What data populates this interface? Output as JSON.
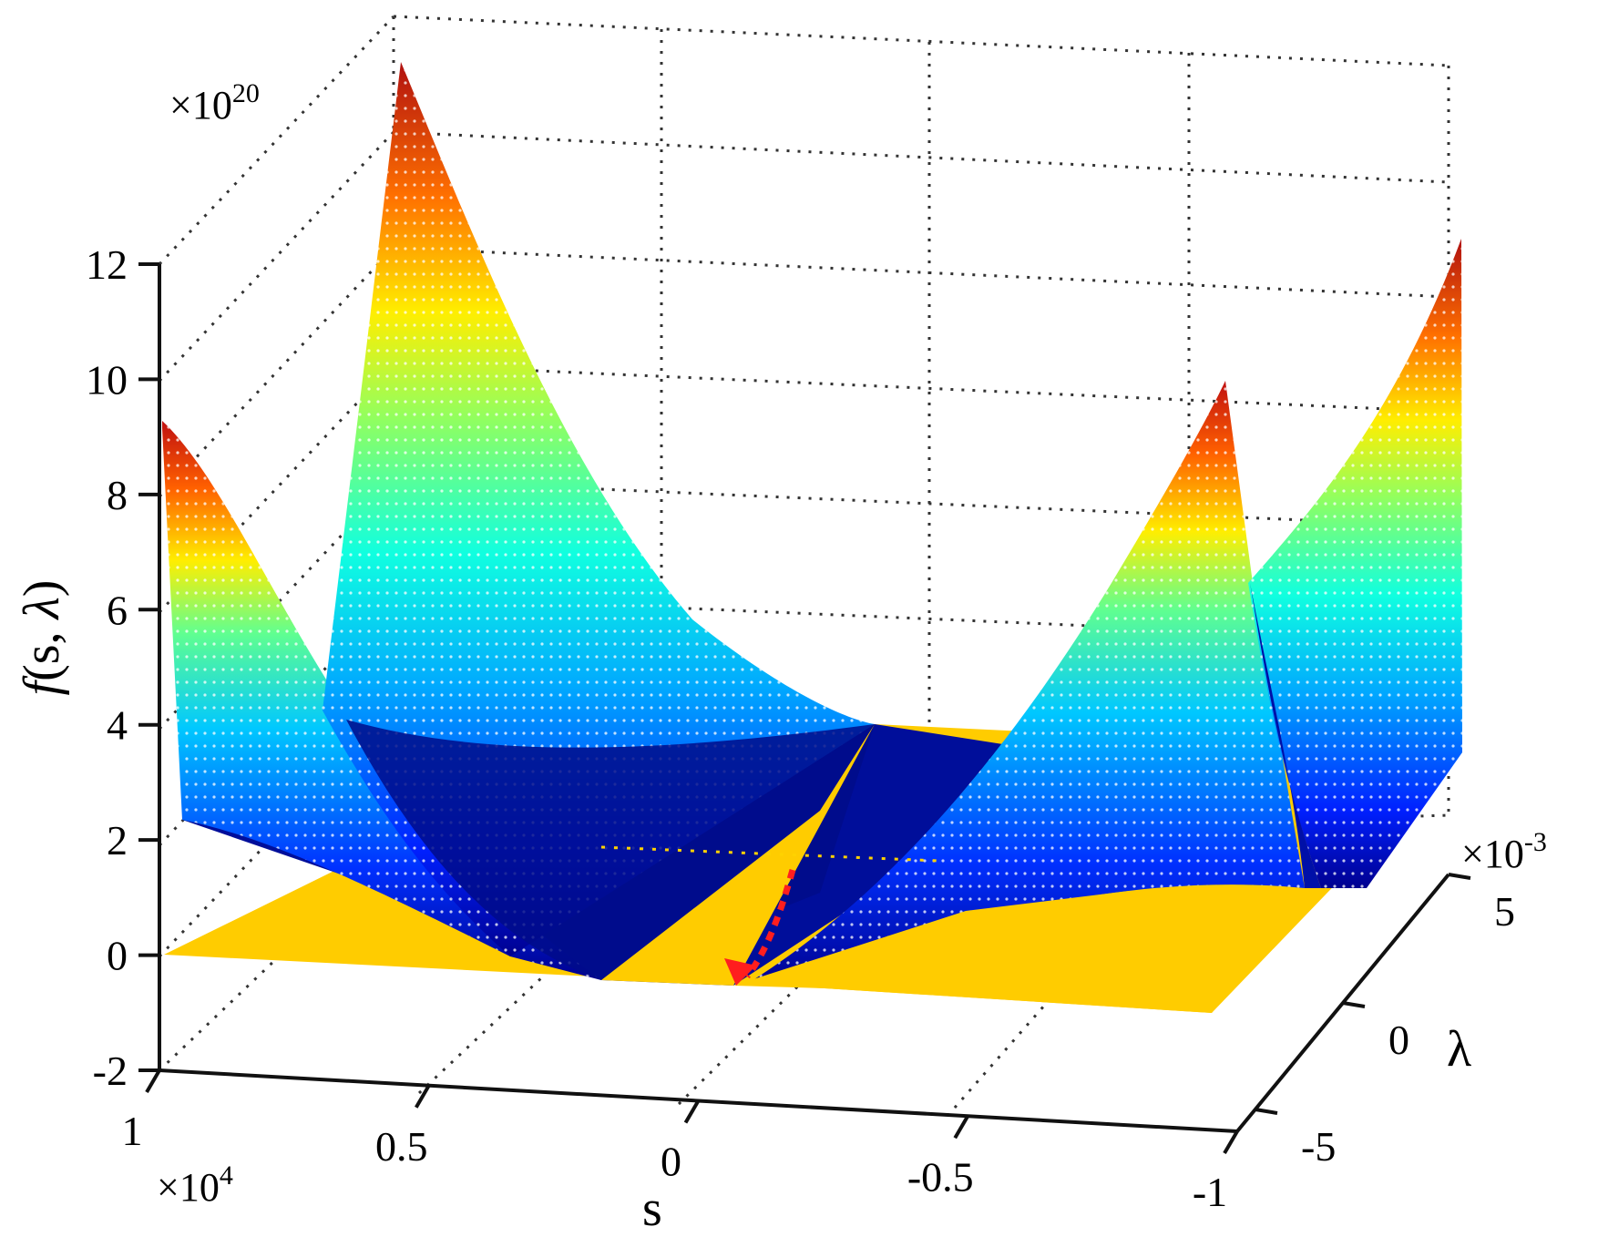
{
  "chart_data": {
    "type": "surface3d",
    "title": "",
    "zlabel_prefix": "f",
    "zlabel_rest": "(s, ",
    "zlabel_lambda": "λ",
    "zlabel_close": ")",
    "xlabel": "s",
    "ylabel": "λ",
    "z_exponent_label": "×10",
    "z_exponent_power": "20",
    "x_exponent_label": "×10",
    "x_exponent_power": "4",
    "y_exponent_label": "×10",
    "y_exponent_power": "-3",
    "z_ticks": [
      "-2",
      "0",
      "2",
      "4",
      "6",
      "8",
      "10",
      "12"
    ],
    "z_tick_values": [
      -2,
      0,
      2,
      4,
      6,
      8,
      10,
      12
    ],
    "x_ticks": [
      "1",
      "0.5",
      "0",
      "-0.5",
      "-1"
    ],
    "x_tick_values": [
      1,
      0.5,
      0,
      -0.5,
      -1
    ],
    "y_ticks": [
      "-5",
      "0",
      "5"
    ],
    "y_tick_values": [
      -5,
      0,
      5
    ],
    "zlim": [
      -2,
      14
    ],
    "xlim": [
      -1,
      1
    ],
    "ylim": [
      -5,
      5
    ],
    "grid": true,
    "colormap": "jet",
    "plane_color": "#FFCC00",
    "arrow_color": "#FF1E1E",
    "series": [
      {
        "kind": "surface",
        "colormap": "jet",
        "z_range": [
          0,
          13.5
        ]
      },
      {
        "kind": "plane",
        "z": 0
      }
    ]
  }
}
